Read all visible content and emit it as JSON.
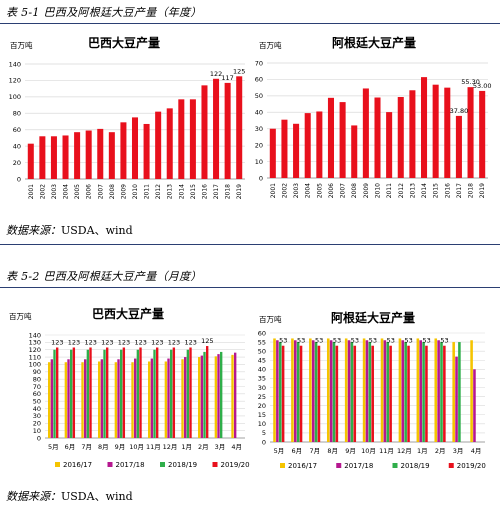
{
  "section1": {
    "title": "表 5-1 巴西及阿根廷大豆产量（年度）",
    "source_label": "数据来源：",
    "source_value": "USDA、wind"
  },
  "section2": {
    "title": "表 5-2 巴西及阿根廷大豆产量（月度）",
    "source_label": "数据来源：",
    "source_value": "USDA、wind"
  },
  "colors": {
    "red": "#e8101c",
    "yellow": "#f5c400",
    "purple": "#b5178f",
    "green": "#2fae4a",
    "grid": "#d9d9d9",
    "rule": "#2b3f73"
  },
  "chart_data": [
    {
      "type": "bar",
      "title": "巴西大豆产量",
      "unit": "百万吨",
      "categories": [
        "2001",
        "2002",
        "2003",
        "2004",
        "2005",
        "2006",
        "2007",
        "2008",
        "2009",
        "2010",
        "2011",
        "2012",
        "2013",
        "2014",
        "2015",
        "2016",
        "2017",
        "2018",
        "2019"
      ],
      "values": [
        43,
        52,
        52,
        53,
        57,
        59,
        61,
        57,
        69,
        75,
        67,
        82,
        86,
        97,
        97,
        114,
        122,
        117,
        125
      ],
      "data_labels": [
        {
          "index": 16,
          "text": "122"
        },
        {
          "index": 17,
          "text": "117"
        },
        {
          "index": 18,
          "text": "125"
        }
      ],
      "yticks": [
        0,
        20,
        40,
        60,
        80,
        100,
        120,
        140
      ],
      "ylim": [
        0,
        140
      ],
      "grid": true
    },
    {
      "type": "bar",
      "title": "阿根廷大豆产量",
      "unit": "百万吨",
      "categories": [
        "2001",
        "2002",
        "2003",
        "2004",
        "2005",
        "2006",
        "2007",
        "2008",
        "2009",
        "2010",
        "2011",
        "2012",
        "2013",
        "2014",
        "2015",
        "2016",
        "2017",
        "2018",
        "2019"
      ],
      "values": [
        30,
        35.5,
        33,
        39.5,
        40.5,
        48.8,
        46.2,
        32,
        54.5,
        49,
        40.1,
        49.3,
        53.4,
        61.4,
        56.8,
        55,
        37.8,
        55.3,
        53
      ],
      "data_labels": [
        {
          "index": 16,
          "text": "37.80"
        },
        {
          "index": 17,
          "text": "55.30"
        },
        {
          "index": 18,
          "text": "53.00"
        }
      ],
      "yticks": [
        0,
        10,
        20,
        30,
        40,
        50,
        60,
        70
      ],
      "ylim": [
        0,
        70
      ],
      "grid": true
    },
    {
      "type": "bar",
      "title": "巴西大豆产量",
      "unit": "百万吨",
      "categories": [
        "5月",
        "6月",
        "7月",
        "8月",
        "9月",
        "10月",
        "11月",
        "12月",
        "1月",
        "2月",
        "3月",
        "4月"
      ],
      "series": [
        {
          "name": "2016/17",
          "color": "yellow",
          "values": [
            103,
            103,
            103,
            104,
            103,
            103,
            104,
            104,
            107,
            110,
            111,
            113
          ]
        },
        {
          "name": "2017/18",
          "color": "purple",
          "values": [
            107,
            107,
            107,
            107,
            107,
            108,
            108,
            108,
            110,
            112,
            114,
            116
          ]
        },
        {
          "name": "2018/19",
          "color": "green",
          "values": [
            120,
            120,
            120,
            120,
            120,
            120,
            120,
            120,
            120,
            117,
            117,
            null
          ]
        },
        {
          "name": "2019/20",
          "color": "red",
          "values": [
            123,
            123,
            123,
            123,
            123,
            123,
            123,
            123,
            123,
            125,
            null,
            null
          ]
        }
      ],
      "data_labels": [
        {
          "index": 0,
          "text": "123"
        },
        {
          "index": 1,
          "text": "123"
        },
        {
          "index": 2,
          "text": "123"
        },
        {
          "index": 3,
          "text": "123"
        },
        {
          "index": 4,
          "text": "123"
        },
        {
          "index": 5,
          "text": "123"
        },
        {
          "index": 6,
          "text": "123"
        },
        {
          "index": 7,
          "text": "123"
        },
        {
          "index": 8,
          "text": "123"
        },
        {
          "index": 9,
          "text": "125"
        }
      ],
      "yticks": [
        0,
        10,
        20,
        30,
        40,
        50,
        60,
        70,
        80,
        90,
        100,
        110,
        120,
        130,
        140
      ],
      "ylim": [
        0,
        140
      ],
      "legend": "bottom"
    },
    {
      "type": "bar",
      "title": "阿根廷大豆产量",
      "unit": "百万吨",
      "categories": [
        "5月",
        "6月",
        "7月",
        "8月",
        "9月",
        "10月",
        "11月",
        "12月",
        "1月",
        "2月",
        "3月",
        "4月"
      ],
      "series": [
        {
          "name": "2016/17",
          "color": "yellow",
          "values": [
            57,
            57,
            57,
            57,
            57,
            57,
            57,
            57,
            57,
            57,
            55,
            56
          ]
        },
        {
          "name": "2017/18",
          "color": "purple",
          "values": [
            56,
            56,
            56,
            56,
            56,
            56,
            56,
            56,
            56,
            56,
            47,
            40
          ]
        },
        {
          "name": "2018/19",
          "color": "green",
          "values": [
            55,
            55,
            55,
            55,
            55,
            55,
            55,
            55,
            55,
            55,
            55,
            null
          ]
        },
        {
          "name": "2019/20",
          "color": "red",
          "values": [
            53,
            53,
            53,
            53,
            53,
            53,
            53,
            53,
            53,
            53,
            null,
            null
          ]
        }
      ],
      "data_labels": [
        {
          "index": 0,
          "text": "53"
        },
        {
          "index": 1,
          "text": "53"
        },
        {
          "index": 2,
          "text": "53"
        },
        {
          "index": 3,
          "text": "53"
        },
        {
          "index": 4,
          "text": "53"
        },
        {
          "index": 5,
          "text": "53"
        },
        {
          "index": 6,
          "text": "53"
        },
        {
          "index": 7,
          "text": "53"
        },
        {
          "index": 8,
          "text": "53"
        },
        {
          "index": 9,
          "text": "53"
        }
      ],
      "yticks": [
        0,
        5,
        10,
        15,
        20,
        25,
        30,
        35,
        40,
        45,
        50,
        55,
        60
      ],
      "ylim": [
        0,
        60
      ],
      "legend": "bottom"
    }
  ]
}
